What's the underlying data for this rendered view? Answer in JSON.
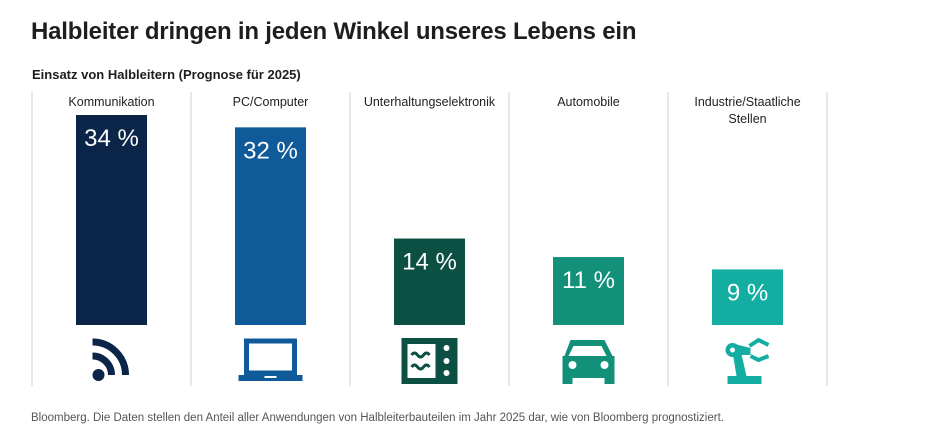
{
  "header": {
    "title": "Halbleiter dringen in jeden Winkel unseres Lebens ein",
    "subtitle": "Einsatz von Halbleitern (Prognose für 2025)"
  },
  "footer": {
    "source": "Bloomberg. Die Daten stellen den Anteil aller Anwendungen von Halbleiterbauteilen im Jahr 2025 dar, wie von Bloomberg prognostiziert."
  },
  "chart_data": {
    "type": "bar",
    "title": "Einsatz von Halbleitern (Prognose für 2025)",
    "xlabel": "",
    "ylabel": "",
    "ylim": [
      0,
      34
    ],
    "grid": false,
    "unit": "%",
    "categories": [
      "Kommunikation",
      "PC/Computer",
      "Unterhaltungselektronik",
      "Automobile",
      "Industrie/Staatliche Stellen"
    ],
    "category_lines": [
      [
        "Kommunikation"
      ],
      [
        "PC/Computer"
      ],
      [
        "Unterhaltungselektronik"
      ],
      [
        "Automobile"
      ],
      [
        "Industrie/Staatliche",
        "Stellen"
      ]
    ],
    "values": [
      34,
      32,
      14,
      11,
      9
    ],
    "value_labels": [
      "34 %",
      "32 %",
      "14 %",
      "11 %",
      "9 %"
    ],
    "colors": [
      "#0b2548",
      "#0f5a98",
      "#0c4f43",
      "#12907a",
      "#14ada2"
    ],
    "icons": [
      "wireless-signal-icon",
      "laptop-icon",
      "microwave-icon",
      "car-icon",
      "robot-arm-icon"
    ]
  }
}
